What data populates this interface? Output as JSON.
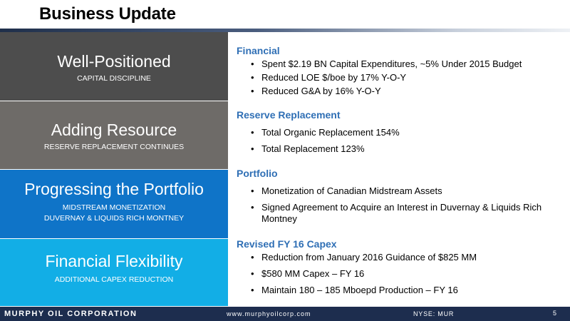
{
  "title": "Business Update",
  "left_blocks": [
    {
      "heading": "Well-Positioned",
      "sub": [
        "CAPITAL DISCIPLINE"
      ],
      "color": "#4d4d4d"
    },
    {
      "heading": "Adding Resource",
      "sub": [
        "RESERVE REPLACEMENT CONTINUES"
      ],
      "color": "#6e6b68"
    },
    {
      "heading": "Progressing the Portfolio",
      "sub": [
        "MIDSTREAM MONETIZATION",
        "DUVERNAY & LIQUIDS RICH MONTNEY"
      ],
      "color": "#0f74c8"
    },
    {
      "heading": "Financial Flexibility",
      "sub": [
        "ADDITIONAL CAPEX REDUCTION"
      ],
      "color": "#12aee6"
    }
  ],
  "sections": [
    {
      "title": "Financial",
      "bullets": [
        "Spent $2.19 BN Capital Expenditures, ~5% Under 2015 Budget",
        "Reduced LOE $/boe by 17% Y-O-Y",
        "Reduced G&A by 16% Y-O-Y"
      ]
    },
    {
      "title": "Reserve Replacement",
      "bullets": [
        "Total Organic Replacement 154%",
        "Total Replacement 123%"
      ]
    },
    {
      "title": "Portfolio",
      "bullets": [
        "Monetization of Canadian Midstream Assets",
        "Signed Agreement to Acquire an Interest in Duvernay & Liquids Rich Montney"
      ]
    },
    {
      "title": "Revised FY 16 Capex",
      "bullets": [
        "Reduction from January 2016 Guidance of $825 MM",
        "$580 MM Capex – FY 16",
        "Maintain 180 – 185 Mboepd Production – FY 16"
      ]
    }
  ],
  "footer": {
    "company": "MURPHY OIL CORPORATION",
    "website": "www.murphyoilcorp.com",
    "ticker": "NYSE: MUR",
    "page": "5"
  },
  "bullet_glyph": "•"
}
